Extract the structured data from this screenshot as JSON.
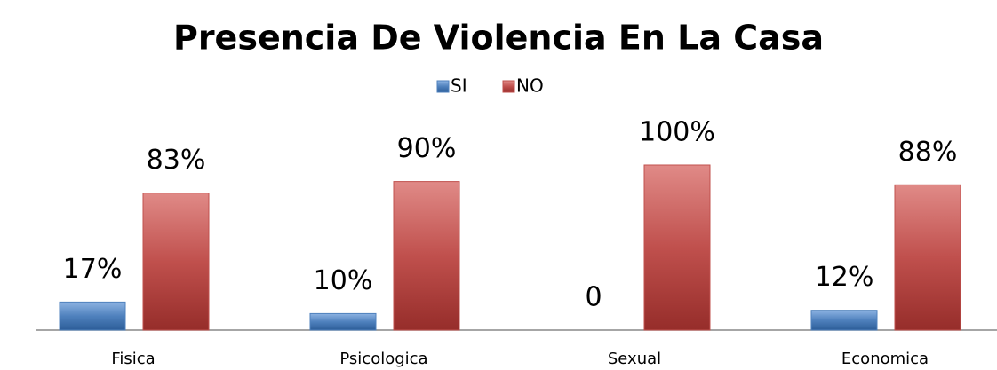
{
  "chart_data": {
    "type": "bar",
    "title": "Presencia De Violencia En La Casa",
    "categories": [
      "Fisica",
      "Psicologica",
      "Sexual",
      "Economica"
    ],
    "series": [
      {
        "name": "SI",
        "color": "#4f81bd",
        "values": [
          17,
          10,
          0,
          12
        ],
        "value_labels": [
          "17%",
          "10%",
          "0",
          "12%"
        ]
      },
      {
        "name": "NO",
        "color": "#c0504d",
        "values": [
          83,
          90,
          100,
          88
        ],
        "value_labels": [
          "83%",
          "90%",
          "100%",
          "88%"
        ]
      }
    ]
  }
}
